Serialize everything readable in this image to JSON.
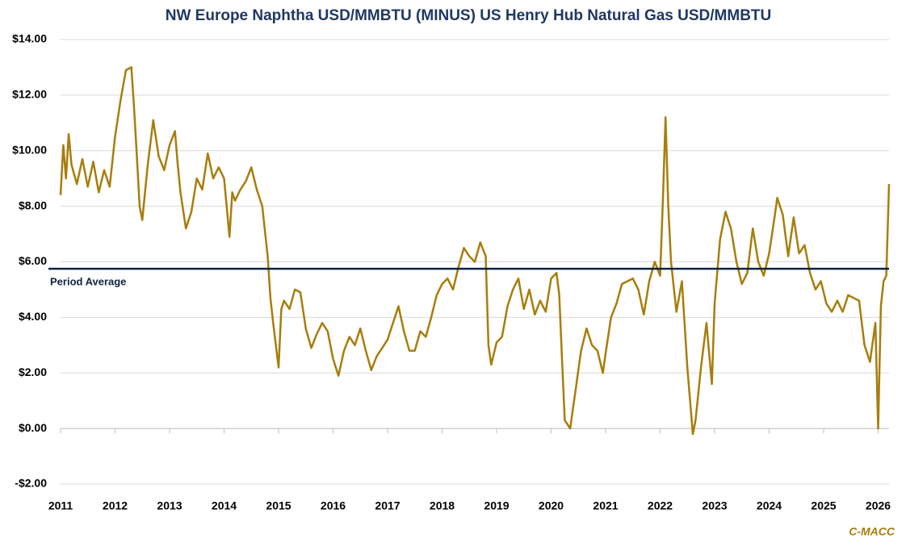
{
  "chart_data": {
    "type": "line",
    "title": "NW Europe Naphtha USD/MMBTU (MINUS) US Henry Hub Natural Gas USD/MMBTU",
    "x": [
      2011.0,
      2011.05,
      2011.1,
      2011.15,
      2011.2,
      2011.3,
      2011.4,
      2011.5,
      2011.6,
      2011.7,
      2011.8,
      2011.9,
      2012.0,
      2012.1,
      2012.2,
      2012.3,
      2012.35,
      2012.4,
      2012.45,
      2012.5,
      2012.55,
      2012.6,
      2012.7,
      2012.8,
      2012.9,
      2013.0,
      2013.1,
      2013.15,
      2013.2,
      2013.3,
      2013.4,
      2013.5,
      2013.6,
      2013.7,
      2013.8,
      2013.9,
      2014.0,
      2014.1,
      2014.15,
      2014.2,
      2014.3,
      2014.4,
      2014.5,
      2014.6,
      2014.7,
      2014.8,
      2014.85,
      2014.9,
      2015.0,
      2015.05,
      2015.1,
      2015.2,
      2015.3,
      2015.4,
      2015.5,
      2015.6,
      2015.7,
      2015.8,
      2015.9,
      2016.0,
      2016.1,
      2016.2,
      2016.3,
      2016.4,
      2016.5,
      2016.6,
      2016.7,
      2016.8,
      2016.9,
      2017.0,
      2017.1,
      2017.2,
      2017.3,
      2017.4,
      2017.5,
      2017.6,
      2017.7,
      2017.8,
      2017.9,
      2018.0,
      2018.1,
      2018.2,
      2018.3,
      2018.4,
      2018.5,
      2018.6,
      2018.7,
      2018.8,
      2018.85,
      2018.9,
      2019.0,
      2019.1,
      2019.2,
      2019.3,
      2019.4,
      2019.5,
      2019.6,
      2019.7,
      2019.8,
      2019.9,
      2020.0,
      2020.1,
      2020.15,
      2020.2,
      2020.25,
      2020.35,
      2020.45,
      2020.55,
      2020.65,
      2020.75,
      2020.85,
      2020.95,
      2021.0,
      2021.1,
      2021.2,
      2021.3,
      2021.4,
      2021.5,
      2021.6,
      2021.7,
      2021.8,
      2021.9,
      2022.0,
      2022.05,
      2022.1,
      2022.15,
      2022.2,
      2022.3,
      2022.4,
      2022.5,
      2022.6,
      2022.65,
      2022.75,
      2022.85,
      2022.95,
      2023.0,
      2023.1,
      2023.2,
      2023.3,
      2023.4,
      2023.5,
      2023.6,
      2023.7,
      2023.8,
      2023.9,
      2024.0,
      2024.1,
      2024.15,
      2024.25,
      2024.35,
      2024.45,
      2024.55,
      2024.65,
      2024.75,
      2024.85,
      2024.95,
      2025.05,
      2025.15,
      2025.25,
      2025.35,
      2025.45,
      2025.55,
      2025.65,
      2025.75,
      2025.85,
      2025.95,
      2026.0,
      2026.05,
      2026.1,
      2026.15,
      2026.2
    ],
    "values": [
      8.4,
      10.2,
      9.0,
      10.6,
      9.5,
      8.8,
      9.7,
      8.7,
      9.6,
      8.5,
      9.3,
      8.7,
      10.5,
      11.8,
      12.9,
      13.0,
      11.5,
      9.8,
      8.0,
      7.5,
      8.5,
      9.5,
      11.1,
      9.8,
      9.3,
      10.2,
      10.7,
      9.5,
      8.5,
      7.2,
      7.8,
      9.0,
      8.6,
      9.9,
      9.0,
      9.4,
      9.0,
      6.9,
      8.5,
      8.2,
      8.6,
      8.9,
      9.4,
      8.6,
      8.0,
      6.2,
      4.7,
      3.8,
      2.2,
      4.3,
      4.6,
      4.3,
      5.0,
      4.9,
      3.6,
      2.9,
      3.4,
      3.8,
      3.5,
      2.5,
      1.9,
      2.8,
      3.3,
      3.0,
      3.6,
      2.8,
      2.1,
      2.6,
      2.9,
      3.2,
      3.8,
      4.4,
      3.5,
      2.8,
      2.8,
      3.5,
      3.3,
      4.0,
      4.8,
      5.2,
      5.4,
      5.0,
      5.8,
      6.5,
      6.2,
      6.0,
      6.7,
      6.2,
      3.0,
      2.3,
      3.1,
      3.3,
      4.4,
      5.0,
      5.4,
      4.3,
      5.0,
      4.1,
      4.6,
      4.2,
      5.4,
      5.6,
      4.8,
      2.5,
      0.3,
      0.0,
      1.4,
      2.8,
      3.6,
      3.0,
      2.8,
      2.0,
      2.7,
      4.0,
      4.5,
      5.2,
      5.3,
      5.4,
      5.0,
      4.1,
      5.3,
      6.0,
      5.5,
      8.2,
      11.2,
      8.0,
      6.0,
      4.2,
      5.3,
      2.2,
      -0.2,
      0.3,
      2.2,
      3.8,
      1.6,
      4.5,
      6.8,
      7.8,
      7.2,
      6.0,
      5.2,
      5.6,
      7.2,
      6.0,
      5.5,
      6.3,
      7.6,
      8.3,
      7.7,
      6.2,
      7.6,
      6.3,
      6.6,
      5.6,
      5.0,
      5.3,
      4.5,
      4.2,
      4.6,
      4.2,
      4.8,
      4.7,
      4.6,
      3.0,
      2.4,
      3.8,
      0.0,
      4.4,
      5.3,
      5.5,
      8.8
    ],
    "color": "#a87d0c",
    "xlim": [
      2011,
      2026.2
    ],
    "xticks": [
      2011,
      2012,
      2013,
      2014,
      2015,
      2016,
      2017,
      2018,
      2019,
      2020,
      2021,
      2022,
      2023,
      2024,
      2025,
      2026
    ],
    "ylim": [
      -2,
      14
    ],
    "yticks": [
      {
        "value": -2,
        "label": "-$2.00"
      },
      {
        "value": 0,
        "label": "$0.00"
      },
      {
        "value": 2,
        "label": "$2.00"
      },
      {
        "value": 4,
        "label": "$4.00"
      },
      {
        "value": 6,
        "label": "$6.00"
      },
      {
        "value": 8,
        "label": "$8.00"
      },
      {
        "value": 10,
        "label": "$10.00"
      },
      {
        "value": 12,
        "label": "$12.00"
      },
      {
        "value": 14,
        "label": "$14.00"
      }
    ],
    "grid": true,
    "average": 5.75,
    "average_label": "Period Average",
    "average_color": "#0f2340",
    "source": "C-MACC"
  }
}
